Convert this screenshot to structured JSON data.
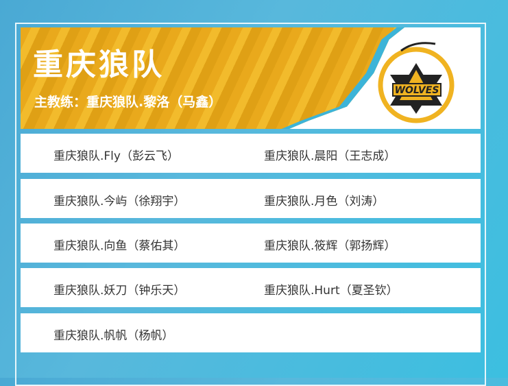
{
  "team": {
    "name": "重庆狼队",
    "coach_label": "主教练：重庆狼队.黎洛（马鑫）",
    "logo_text": "WOLVES",
    "colors": {
      "gold": "#f2bb2c",
      "accent": "#3cb4d8"
    }
  },
  "players": [
    "重庆狼队.Fly（彭云飞）",
    "重庆狼队.晨阳（王志成）",
    "重庆狼队.今屿（徐翔宇）",
    "重庆狼队.月色（刘涛）",
    "重庆狼队.向鱼（蔡佑其）",
    "重庆狼队.筱辉（郭扬辉）",
    "重庆狼队.妖刀（钟乐天）",
    "重庆狼队.Hurt（夏圣钦）",
    "重庆狼队.帆帆（杨帆）"
  ]
}
